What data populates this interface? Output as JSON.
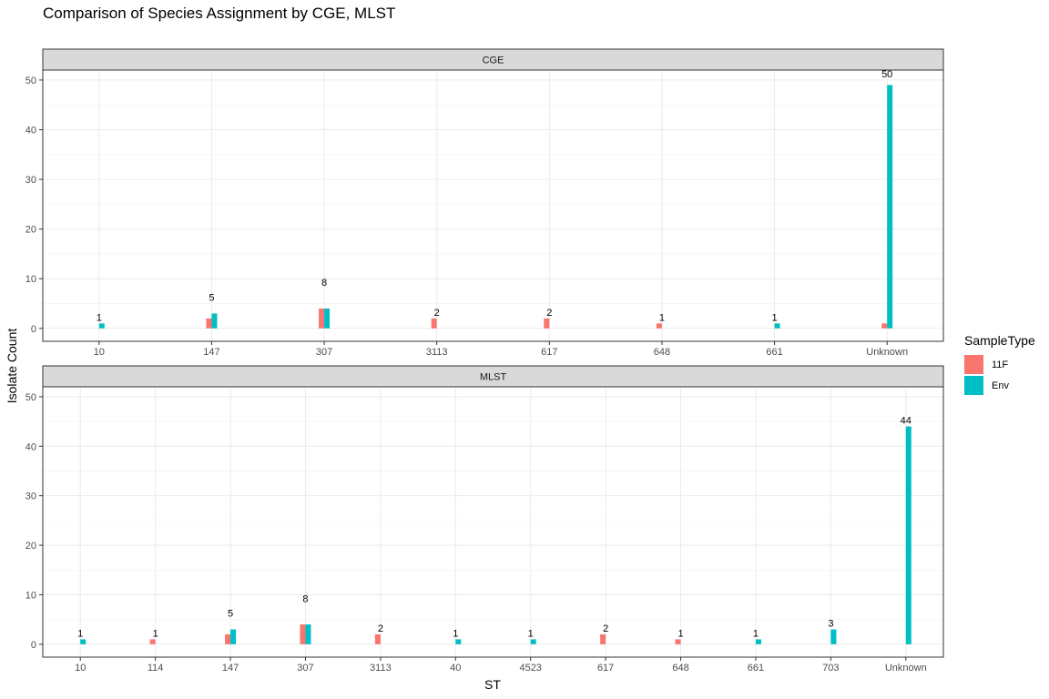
{
  "chart_data": {
    "type": "bar",
    "title": "Comparison of Species Assignment by CGE, MLST",
    "xlabel": "ST",
    "ylabel": "Isolate Count",
    "ylim": [
      0,
      52
    ],
    "yticks": [
      0,
      10,
      20,
      30,
      40,
      50
    ],
    "grid": true,
    "legend": {
      "title": "SampleType",
      "position": "right",
      "entries": [
        {
          "name": "11F",
          "color": "#F8766D"
        },
        {
          "name": "Env",
          "color": "#00BFC4"
        }
      ]
    },
    "facets": [
      {
        "name": "CGE",
        "categories": [
          "10",
          "147",
          "307",
          "3113",
          "617",
          "648",
          "661",
          "Unknown"
        ],
        "series": [
          {
            "name": "11F",
            "values": [
              0,
              2,
              4,
              2,
              2,
              1,
              0,
              1
            ]
          },
          {
            "name": "Env",
            "values": [
              1,
              3,
              4,
              0,
              0,
              0,
              1,
              49
            ]
          }
        ],
        "labels": [
          "1",
          "5",
          "8",
          "2",
          "2",
          "1",
          "1",
          "50"
        ]
      },
      {
        "name": "MLST",
        "categories": [
          "10",
          "114",
          "147",
          "307",
          "3113",
          "40",
          "4523",
          "617",
          "648",
          "661",
          "703",
          "Unknown"
        ],
        "series": [
          {
            "name": "11F",
            "values": [
              0,
              1,
              2,
              4,
              2,
              0,
              0,
              2,
              1,
              0,
              0,
              0
            ]
          },
          {
            "name": "Env",
            "values": [
              1,
              0,
              3,
              4,
              0,
              1,
              1,
              0,
              0,
              1,
              3,
              44
            ]
          }
        ],
        "labels": [
          "1",
          "1",
          "5",
          "8",
          "2",
          "1",
          "1",
          "2",
          "1",
          "1",
          "3",
          "44"
        ]
      }
    ]
  }
}
